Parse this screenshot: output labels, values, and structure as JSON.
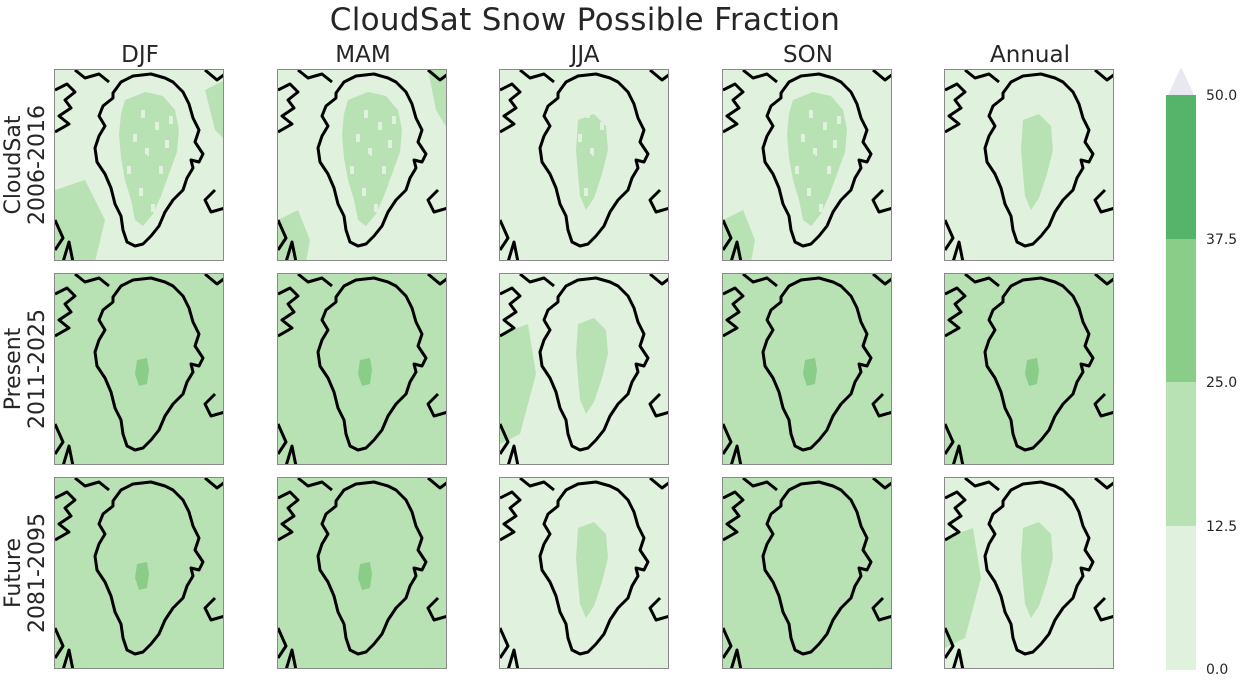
{
  "title": "CloudSat Snow Possible Fraction",
  "columns": [
    "DJF",
    "MAM",
    "JJA",
    "SON",
    "Annual"
  ],
  "rows": [
    {
      "line1": "CloudSat",
      "line2": "2006-2016"
    },
    {
      "line1": "Present",
      "line2": "2011-2025"
    },
    {
      "line1": "Future",
      "line2": "2081-2095"
    }
  ],
  "colorbar": {
    "ticks": [
      "50.0",
      "37.5",
      "25.0",
      "12.5",
      "0.0"
    ],
    "levels": [
      {
        "range": "0.0-12.5",
        "color": "#e0f1de"
      },
      {
        "range": "12.5-25.0",
        "color": "#b9e2b4"
      },
      {
        "range": "25.0-37.5",
        "color": "#8acd88"
      },
      {
        "range": "37.5-50.0",
        "color": "#56b46a"
      }
    ],
    "extend_color": "#e8e8f1",
    "extend": "max"
  },
  "panels": [
    [
      {
        "background": 0,
        "ice_sheet": 1,
        "core": 1,
        "regions": [
          "ice-speckled",
          "sw-plume",
          "east-patches"
        ]
      },
      {
        "background": 0,
        "ice_sheet": 1,
        "core": 1,
        "regions": [
          "ice-speckled",
          "sw-strip",
          "ne-strip"
        ]
      },
      {
        "background": 0,
        "ice_sheet": 0,
        "core": 1,
        "regions": [
          "ice-center-speckled"
        ]
      },
      {
        "background": 0,
        "ice_sheet": 1,
        "core": 1,
        "regions": [
          "ice-speckled",
          "sw-strip"
        ]
      },
      {
        "background": 0,
        "ice_sheet": 1,
        "core": 1,
        "regions": [
          "ice-center"
        ]
      }
    ],
    [
      {
        "background": 1,
        "ice_sheet": 1,
        "core": 2,
        "regions": [
          "ocean-level1",
          "sw-plume"
        ]
      },
      {
        "background": 1,
        "ice_sheet": 1,
        "core": 2,
        "regions": [
          "ocean-level1"
        ]
      },
      {
        "background": 0,
        "ice_sheet": 1,
        "core": 1,
        "regions": [
          "ice-center",
          "west-strip"
        ]
      },
      {
        "background": 1,
        "ice_sheet": 1,
        "core": 2,
        "regions": [
          "ocean-level1"
        ]
      },
      {
        "background": 1,
        "ice_sheet": 1,
        "core": 2,
        "regions": [
          "ocean-level1"
        ]
      }
    ],
    [
      {
        "background": 1,
        "ice_sheet": 1,
        "core": 2,
        "regions": [
          "ocean-level1",
          "sw-plume"
        ]
      },
      {
        "background": 1,
        "ice_sheet": 1,
        "core": 2,
        "regions": [
          "ocean-level1"
        ]
      },
      {
        "background": 0,
        "ice_sheet": 0,
        "core": 1,
        "regions": [
          "ice-center"
        ]
      },
      {
        "background": 1,
        "ice_sheet": 1,
        "core": 1,
        "regions": [
          "ocean-level1"
        ]
      },
      {
        "background": 0,
        "ice_sheet": 1,
        "core": 1,
        "regions": [
          "ice-center",
          "west-strip"
        ]
      }
    ]
  ]
}
